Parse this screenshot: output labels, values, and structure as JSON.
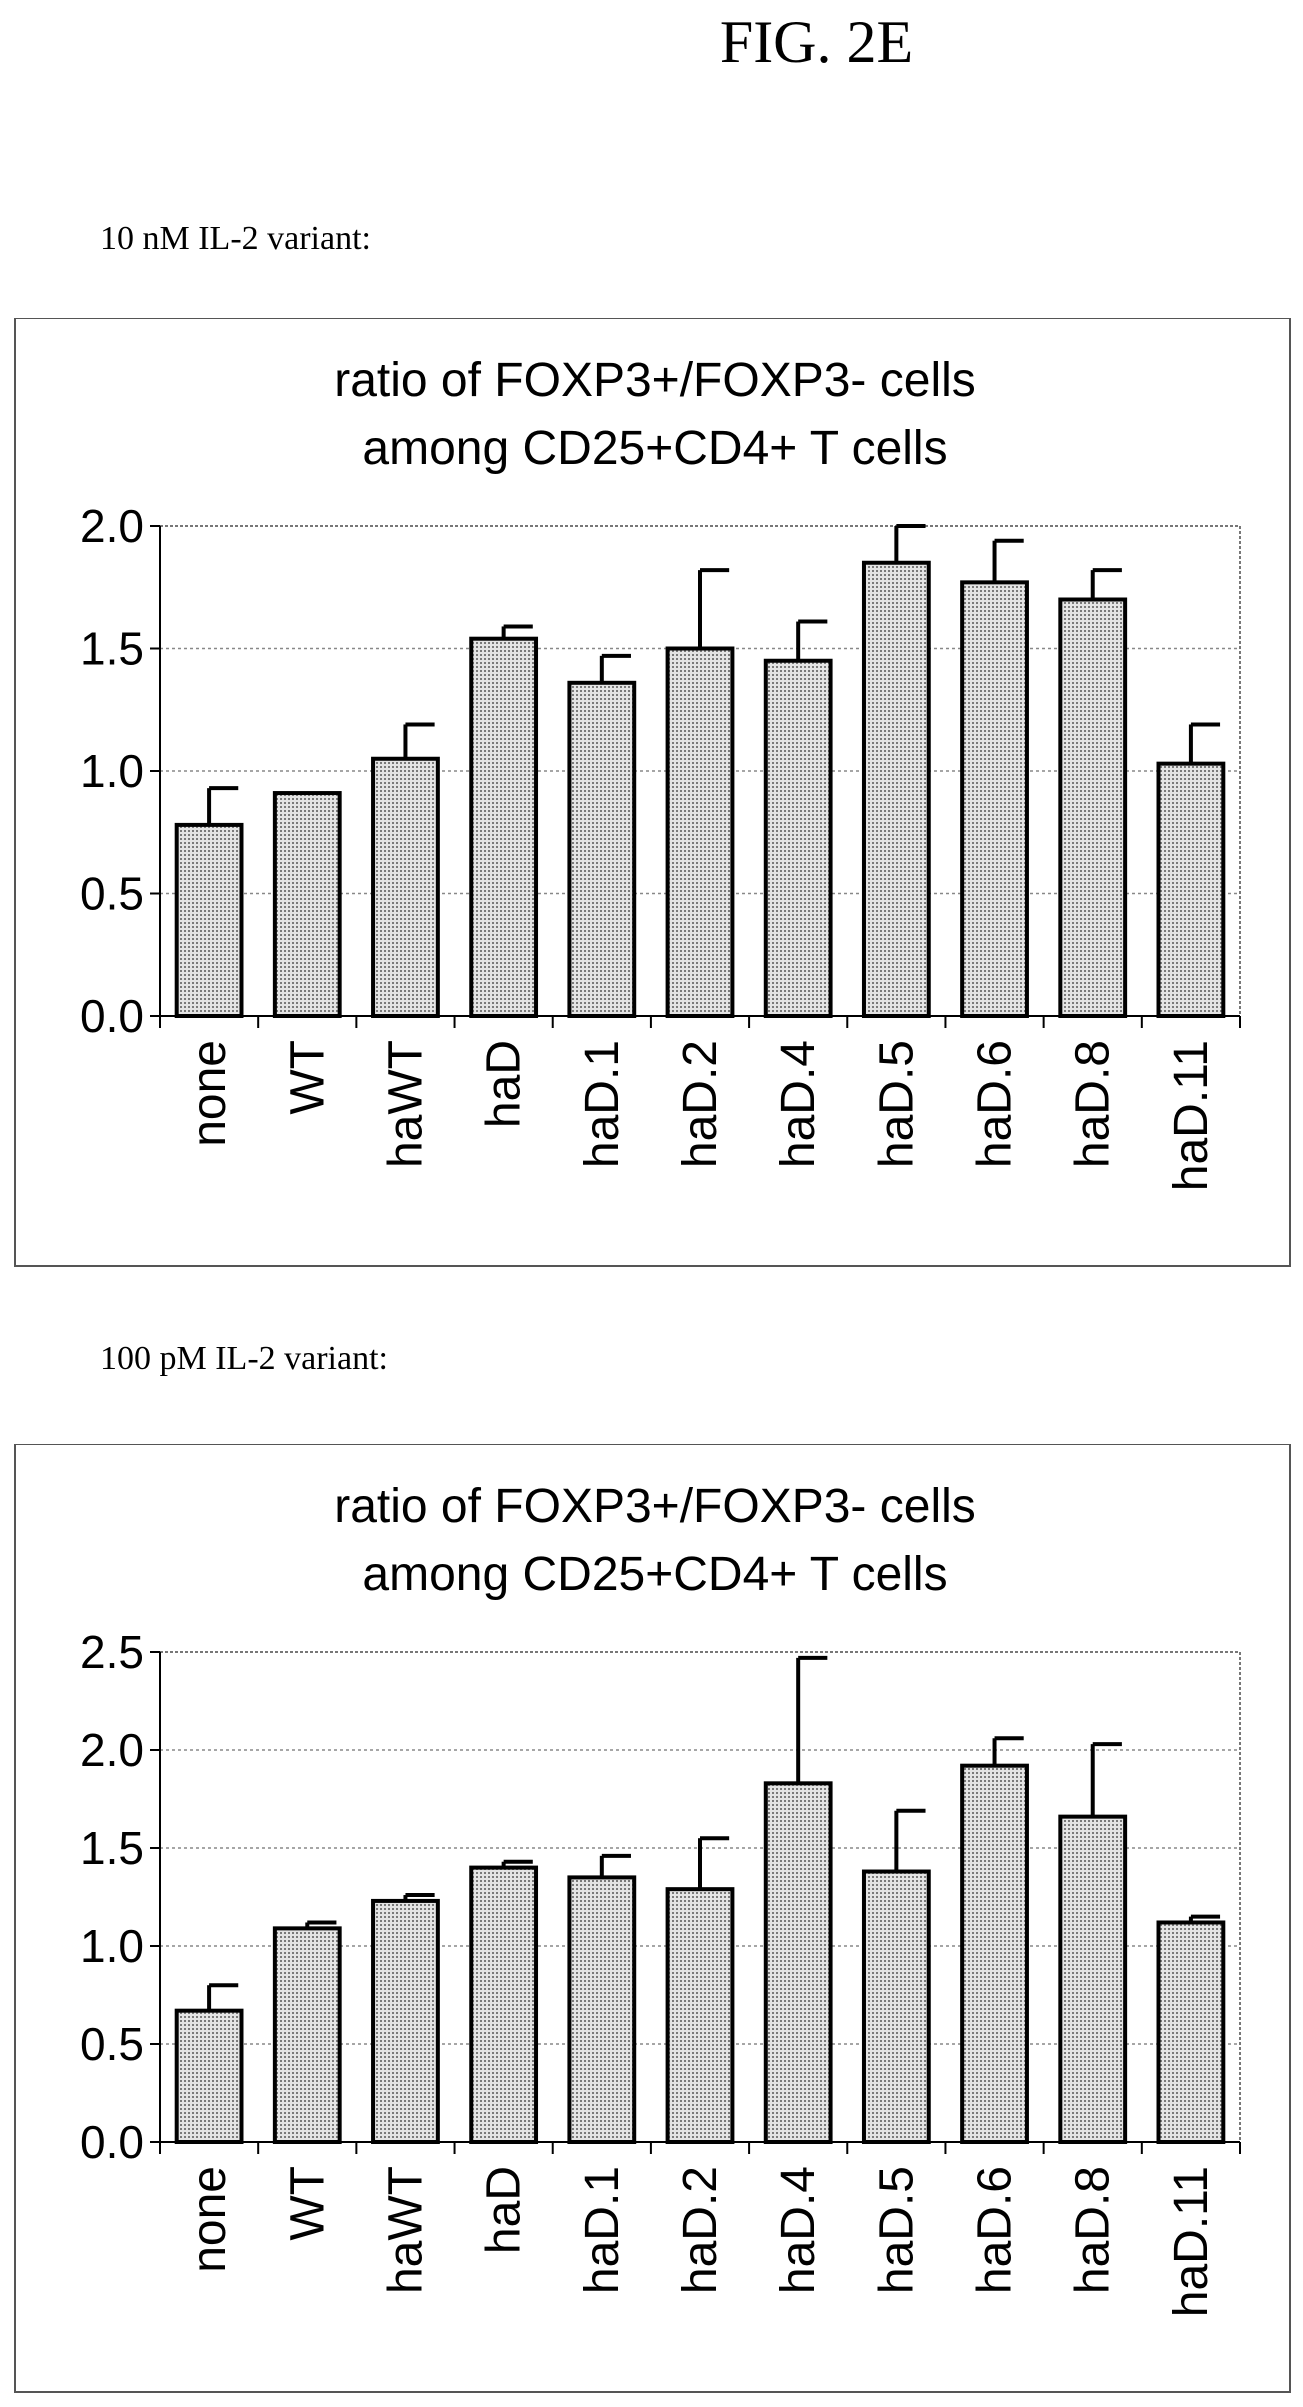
{
  "figure_title": "FIG. 2E",
  "panels": [
    {
      "condition_label": "10 nM IL-2 variant:"
    },
    {
      "condition_label": "100 pM IL-2 variant:"
    }
  ],
  "colors": {
    "bar_fill": "#c8c8c8",
    "bar_stroke": "#000000",
    "grid": "#888888"
  },
  "chart_data": [
    {
      "type": "bar",
      "title": "ratio of FOXP3+/FOXP3- cells",
      "subtitle": "among CD25+CD4+ T cells",
      "xlabel": "",
      "ylabel": "",
      "categories": [
        "none",
        "WT",
        "haWT",
        "haD",
        "haD.1",
        "haD.2",
        "haD.4",
        "haD.5",
        "haD.6",
        "haD.8",
        "haD.11"
      ],
      "values": [
        0.78,
        0.91,
        1.05,
        1.54,
        1.36,
        1.5,
        1.45,
        1.85,
        1.77,
        1.7,
        1.03
      ],
      "error": [
        0.15,
        0.0,
        0.14,
        0.05,
        0.11,
        0.32,
        0.16,
        0.15,
        0.17,
        0.12,
        0.16
      ],
      "ylim": [
        0,
        2.0
      ],
      "yticks": [
        "0.0",
        "0.5",
        "1.0",
        "1.5",
        "2.0"
      ],
      "ytick_values": [
        0,
        0.5,
        1.0,
        1.5,
        2.0
      ],
      "grid": true
    },
    {
      "type": "bar",
      "title": "ratio of FOXP3+/FOXP3- cells",
      "subtitle": "among CD25+CD4+ T cells",
      "xlabel": "",
      "ylabel": "",
      "categories": [
        "none",
        "WT",
        "haWT",
        "haD",
        "haD.1",
        "haD.2",
        "haD.4",
        "haD.5",
        "haD.6",
        "haD.8",
        "haD.11"
      ],
      "values": [
        0.67,
        1.09,
        1.23,
        1.4,
        1.35,
        1.29,
        1.83,
        1.38,
        1.92,
        1.66,
        1.12
      ],
      "error": [
        0.13,
        0.03,
        0.03,
        0.03,
        0.11,
        0.26,
        0.64,
        0.31,
        0.14,
        0.37,
        0.03
      ],
      "ylim": [
        0,
        2.5
      ],
      "yticks": [
        "0.0",
        "0.5",
        "1.0",
        "1.5",
        "2.0",
        "2.5"
      ],
      "ytick_values": [
        0,
        0.5,
        1.0,
        1.5,
        2.0,
        2.5
      ],
      "grid": true
    }
  ]
}
